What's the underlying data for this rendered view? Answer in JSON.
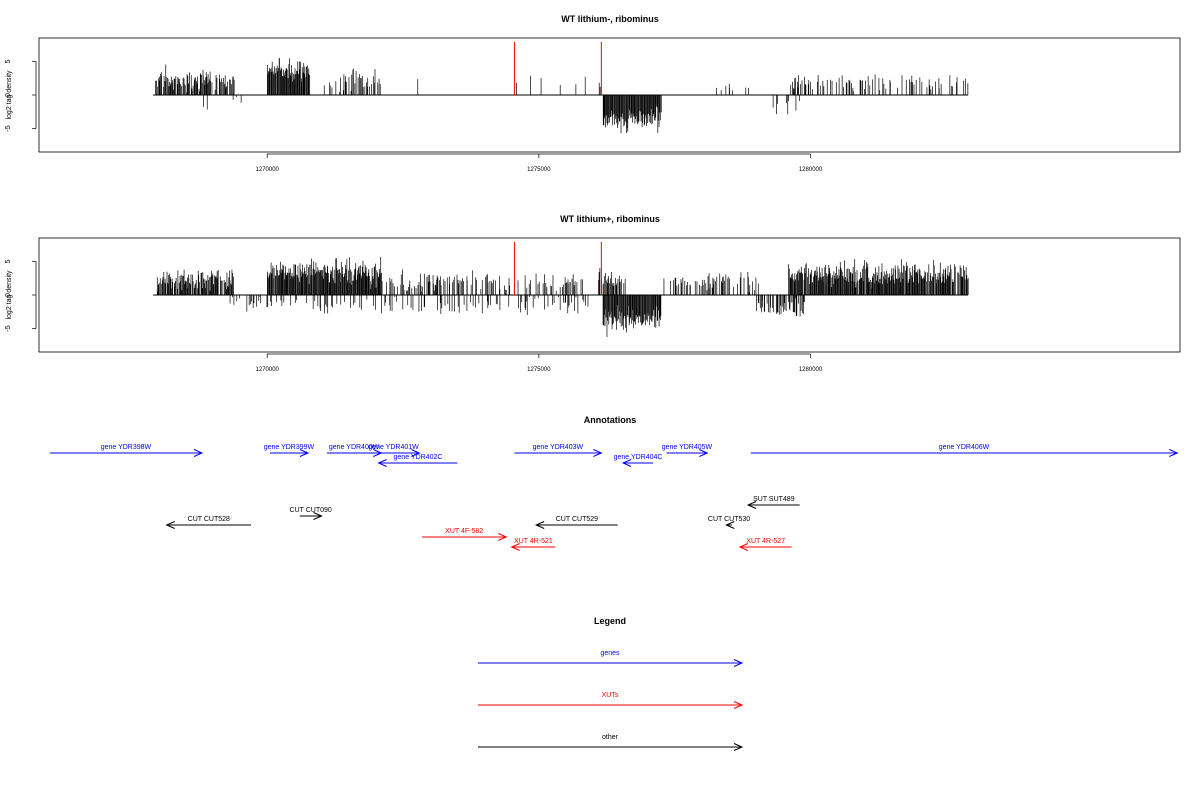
{
  "chart_data": [
    {
      "type": "bar",
      "title": "WT lithium-, ribominus",
      "ylabel": "log2 tag density",
      "xlabel": "",
      "xlim": [
        1265800,
        1286800
      ],
      "ylim": [
        -8.5,
        8.5
      ],
      "yticks": [
        -5,
        0,
        5
      ],
      "xticks": [
        1270000,
        1275000,
        1280000
      ],
      "xtick_labels": [
        "1270000",
        "1275000",
        "1280000"
      ],
      "marker_lines": [
        1274550,
        1276150
      ],
      "marker_color": "#ff0000",
      "bar_color": "#000000",
      "data_range": [
        1267900,
        1282900
      ],
      "segments": [
        {
          "from": 1267950,
          "to": 1269400,
          "dir": 1,
          "density": 0.85,
          "mean": 2.3,
          "spread": 1.2,
          "max": 5.4
        },
        {
          "from": 1270000,
          "to": 1270780,
          "dir": 1,
          "density": 1.0,
          "mean": 3.8,
          "spread": 1.3,
          "max": 6.5
        },
        {
          "from": 1271050,
          "to": 1272100,
          "dir": 1,
          "density": 0.45,
          "mean": 2.3,
          "spread": 1.2,
          "max": 5.2
        },
        {
          "from": 1272600,
          "to": 1272900,
          "dir": 1,
          "density": 0.08,
          "mean": 2.4,
          "spread": 0.4,
          "max": 3.0
        },
        {
          "from": 1274400,
          "to": 1276100,
          "dir": 1,
          "density": 0.06,
          "mean": 2.0,
          "spread": 0.9,
          "max": 3.6
        },
        {
          "from": 1276180,
          "to": 1277250,
          "dir": -1,
          "density": 1.0,
          "mean": 3.6,
          "spread": 1.4,
          "max": 6.5
        },
        {
          "from": 1276100,
          "to": 1276300,
          "dir": 1,
          "density": 0.2,
          "mean": 1.8,
          "spread": 0.8,
          "max": 3.2
        },
        {
          "from": 1278200,
          "to": 1279000,
          "dir": 1,
          "density": 0.07,
          "mean": 1.5,
          "spread": 0.7,
          "max": 2.5
        },
        {
          "from": 1279200,
          "to": 1279800,
          "dir": -1,
          "density": 0.15,
          "mean": 1.6,
          "spread": 0.9,
          "max": 3.3
        },
        {
          "from": 1279600,
          "to": 1282900,
          "dir": 1,
          "density": 0.32,
          "mean": 1.9,
          "spread": 0.9,
          "max": 4.3
        },
        {
          "from": 1268800,
          "to": 1269600,
          "dir": -1,
          "density": 0.04,
          "mean": 1.5,
          "spread": 1.2,
          "max": 3.6
        },
        {
          "from": 1271700,
          "to": 1271950,
          "dir": -1,
          "density": 0.05,
          "mean": 2.0,
          "spread": 0.8,
          "max": 3.2
        }
      ]
    },
    {
      "type": "bar",
      "title": "WT lithium+, ribominus",
      "ylabel": "log2 tag density",
      "xlabel": "",
      "xlim": [
        1265800,
        1286800
      ],
      "ylim": [
        -8.5,
        8.5
      ],
      "yticks": [
        -5,
        0,
        5
      ],
      "xticks": [
        1270000,
        1275000,
        1280000
      ],
      "xtick_labels": [
        "1270000",
        "1275000",
        "1280000"
      ],
      "marker_lines": [
        1274550,
        1276150
      ],
      "marker_color": "#ff0000",
      "bar_color": "#000000",
      "data_range": [
        1267900,
        1282900
      ],
      "segments": [
        {
          "from": 1267950,
          "to": 1269400,
          "dir": 1,
          "density": 0.85,
          "mean": 2.3,
          "spread": 1.2,
          "max": 5.4
        },
        {
          "from": 1270000,
          "to": 1272100,
          "dir": 1,
          "density": 1.0,
          "mean": 3.5,
          "spread": 1.4,
          "max": 7.2
        },
        {
          "from": 1272100,
          "to": 1275900,
          "dir": 1,
          "density": 0.35,
          "mean": 2.0,
          "spread": 1.1,
          "max": 4.6
        },
        {
          "from": 1269300,
          "to": 1275900,
          "dir": -1,
          "density": 0.22,
          "mean": 1.6,
          "spread": 1.0,
          "max": 4.5
        },
        {
          "from": 1276180,
          "to": 1277250,
          "dir": -1,
          "density": 1.0,
          "mean": 3.8,
          "spread": 1.4,
          "max": 7.6
        },
        {
          "from": 1276100,
          "to": 1276600,
          "dir": 1,
          "density": 0.5,
          "mean": 2.3,
          "spread": 1.0,
          "max": 4.4
        },
        {
          "from": 1277300,
          "to": 1279100,
          "dir": 1,
          "density": 0.4,
          "mean": 2.1,
          "spread": 1.0,
          "max": 4.3
        },
        {
          "from": 1279000,
          "to": 1279900,
          "dir": -1,
          "density": 0.55,
          "mean": 2.0,
          "spread": 1.0,
          "max": 4.9
        },
        {
          "from": 1279600,
          "to": 1282900,
          "dir": 1,
          "density": 0.95,
          "mean": 3.1,
          "spread": 1.3,
          "max": 6.4
        }
      ]
    }
  ],
  "annotations": {
    "title": "Annotations",
    "xlim": [
      1265800,
      1286800
    ],
    "features": [
      {
        "label": "gene YDR398W",
        "color": "#0000ff",
        "dir": 1,
        "start": 1266000,
        "end": 1268800,
        "row": 0
      },
      {
        "label": "gene YDR399W",
        "color": "#0000ff",
        "dir": 1,
        "start": 1270050,
        "end": 1270750,
        "row": 0
      },
      {
        "label": "gene YDR400W",
        "color": "#0000ff",
        "dir": 1,
        "start": 1271100,
        "end": 1272100,
        "row": 0
      },
      {
        "label": "gene YDR401W",
        "color": "#0000ff",
        "dir": 1,
        "start": 1271850,
        "end": 1272800,
        "row": 0
      },
      {
        "label": "gene YDR402C",
        "color": "#0000ff",
        "dir": -1,
        "start": 1272050,
        "end": 1273500,
        "row": 1
      },
      {
        "label": "gene YDR403W",
        "color": "#0000ff",
        "dir": 1,
        "start": 1274550,
        "end": 1276150,
        "row": 0
      },
      {
        "label": "gene YDR404C",
        "color": "#0000ff",
        "dir": -1,
        "start": 1276550,
        "end": 1277100,
        "row": 1
      },
      {
        "label": "gene YDR405W",
        "color": "#0000ff",
        "dir": 1,
        "start": 1277350,
        "end": 1278100,
        "row": 0
      },
      {
        "label": "gene YDR406W",
        "color": "#0000ff",
        "dir": 1,
        "start": 1278900,
        "end": 1286750,
        "row": 0
      },
      {
        "label": "SUT SUT489",
        "color": "#000000",
        "dir": -1,
        "start": 1278850,
        "end": 1279800,
        "row": 2
      },
      {
        "label": "CUT CUT528",
        "color": "#000000",
        "dir": -1,
        "start": 1268150,
        "end": 1269700,
        "row": 3
      },
      {
        "label": "CUT CUT090",
        "color": "#000000",
        "dir": 1,
        "start": 1270600,
        "end": 1271000,
        "row": 4
      },
      {
        "label": "CUT CUT529",
        "color": "#000000",
        "dir": -1,
        "start": 1274950,
        "end": 1276450,
        "row": 3
      },
      {
        "label": "CUT CUT530",
        "color": "#000000",
        "dir": -1,
        "start": 1278450,
        "end": 1278550,
        "row": 3
      },
      {
        "label": "XUT 4F-582",
        "color": "#ff0000",
        "dir": 1,
        "start": 1272850,
        "end": 1274400,
        "row": 5
      },
      {
        "label": "XUT 4R-521",
        "color": "#ff0000",
        "dir": -1,
        "start": 1274500,
        "end": 1275300,
        "row": 6
      },
      {
        "label": "XUT 4R-527",
        "color": "#ff0000",
        "dir": -1,
        "start": 1278700,
        "end": 1279650,
        "row": 6
      }
    ]
  },
  "legend": {
    "title": "Legend",
    "items": [
      {
        "label": "genes",
        "color": "#0000ff"
      },
      {
        "label": "XUTs",
        "color": "#ff0000"
      },
      {
        "label": "other",
        "color": "#000000"
      }
    ]
  }
}
